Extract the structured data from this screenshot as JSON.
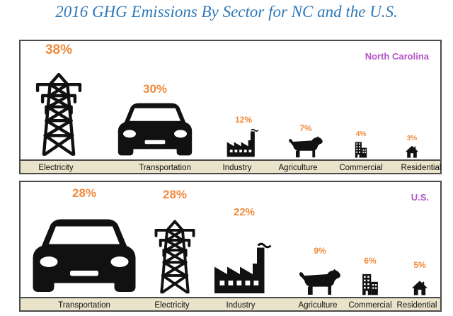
{
  "title": "2016 GHG Emissions By Sector for NC and the U.S.",
  "colors": {
    "title": "#2e78b7",
    "percent": "#f08a3c",
    "region": "#b456c8",
    "band": "#e9e3c9"
  },
  "chart_data": [
    {
      "type": "bar",
      "region": "North Carolina",
      "categories": [
        "Electricity",
        "Transportation",
        "Industry",
        "Agriculture",
        "Commercial",
        "Residential"
      ],
      "values": [
        38,
        30,
        12,
        7,
        4,
        3
      ],
      "labels": [
        "38%",
        "30%",
        "12%",
        "7%",
        "4%",
        "3%"
      ],
      "icons": [
        "power-tower-icon",
        "car-icon",
        "factory-icon",
        "cow-icon",
        "office-building-icon",
        "house-icon"
      ]
    },
    {
      "type": "bar",
      "region": "U.S.",
      "categories": [
        "Transportation",
        "Electricity",
        "Industry",
        "Agriculture",
        "Commercial",
        "Residential"
      ],
      "values": [
        28,
        28,
        22,
        9,
        6,
        5
      ],
      "labels": [
        "28%",
        "28%",
        "22%",
        "9%",
        "6%",
        "5%"
      ],
      "icons": [
        "car-icon",
        "power-tower-icon",
        "factory-icon",
        "cow-icon",
        "office-building-icon",
        "house-icon"
      ]
    }
  ]
}
